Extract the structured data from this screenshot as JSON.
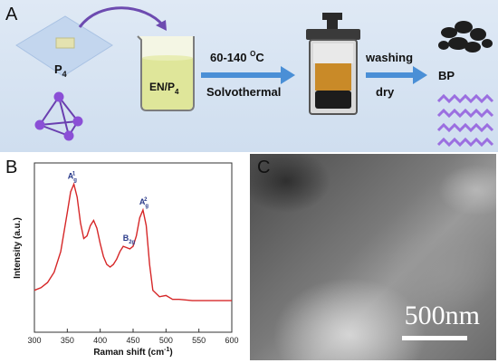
{
  "panel_labels": {
    "a": "A",
    "b": "B",
    "c": "C"
  },
  "panelA": {
    "p4_label": "P",
    "p4_sub": "4",
    "beaker_label": "EN/P",
    "beaker_sub": "4",
    "temp_label": "60-140 ",
    "temp_unit": "C",
    "temp_deg": "O",
    "method_label": "Solvothermal",
    "washing_label": "washing",
    "dry_label": "dry",
    "product_label": "BP"
  },
  "panelB": {
    "xlabel": "Raman shift (cm",
    "xlabel_sup": "-1",
    "xlabel_end": ")",
    "ylabel": "Intensity (a.u.)",
    "peak_labels": [
      {
        "main": "A",
        "sub": "g",
        "sup": "1"
      },
      {
        "main": "B",
        "sub": "2g",
        "sup": ""
      },
      {
        "main": "A",
        "sub": "g",
        "sup": "2"
      }
    ]
  },
  "panelC": {
    "scale_label": "500nm"
  },
  "chart_data": {
    "type": "line",
    "title": "",
    "xlabel": "Raman shift (cm-1)",
    "ylabel": "Intensity (a.u.)",
    "xlim": [
      300,
      600
    ],
    "xticks": [
      300,
      350,
      400,
      450,
      500,
      550,
      600
    ],
    "color": "#d62728",
    "x": [
      300,
      310,
      320,
      330,
      340,
      350,
      355,
      360,
      365,
      370,
      375,
      380,
      385,
      390,
      395,
      400,
      405,
      410,
      415,
      420,
      425,
      430,
      435,
      440,
      445,
      450,
      455,
      460,
      465,
      470,
      475,
      480,
      490,
      500,
      510,
      520,
      540,
      560,
      580,
      600
    ],
    "y": [
      0.1,
      0.12,
      0.16,
      0.24,
      0.4,
      0.7,
      0.86,
      0.92,
      0.82,
      0.62,
      0.5,
      0.52,
      0.6,
      0.64,
      0.58,
      0.46,
      0.36,
      0.3,
      0.28,
      0.3,
      0.34,
      0.4,
      0.44,
      0.43,
      0.42,
      0.44,
      0.52,
      0.66,
      0.72,
      0.6,
      0.3,
      0.1,
      0.05,
      0.06,
      0.03,
      0.03,
      0.02,
      0.02,
      0.02,
      0.02
    ]
  }
}
